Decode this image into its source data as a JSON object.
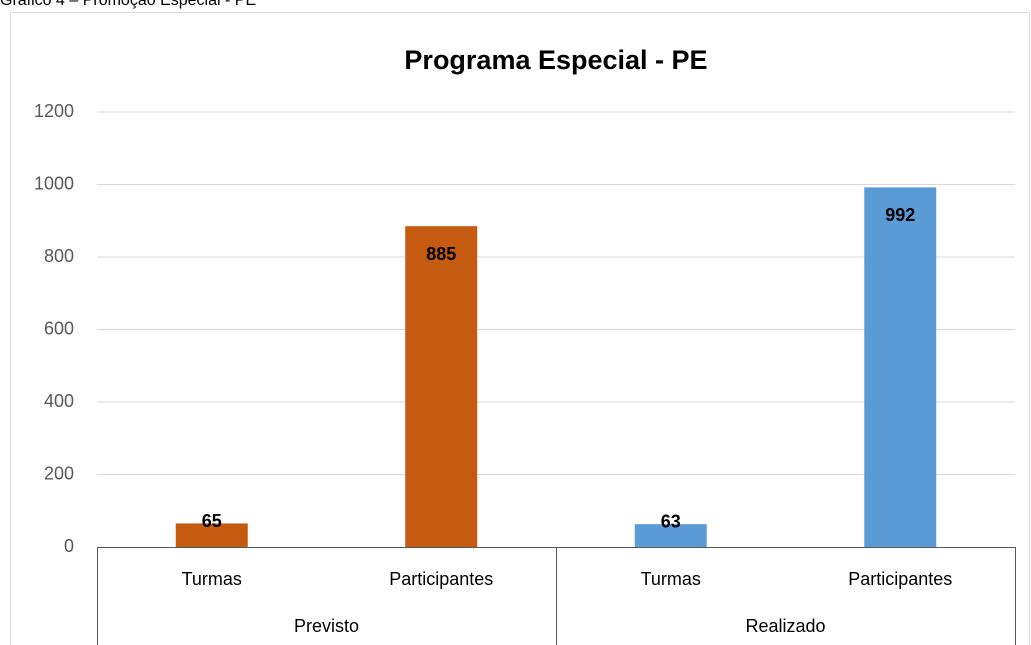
{
  "caption": "Gráfico 4 – Promoção Especial - PE",
  "chart_data": {
    "type": "bar",
    "title": "Programa Especial - PE",
    "groups": [
      {
        "name": "Previsto",
        "color": "#c55a11",
        "categories": [
          "Turmas",
          "Participantes"
        ],
        "values": [
          65,
          885
        ]
      },
      {
        "name": "Realizado",
        "color": "#5b9bd5",
        "categories": [
          "Turmas",
          "Participantes"
        ],
        "values": [
          63,
          992
        ]
      }
    ],
    "ylim": [
      0,
      1200
    ],
    "yticks": [
      0,
      200,
      400,
      600,
      800,
      1000,
      1200
    ],
    "grid": true
  }
}
